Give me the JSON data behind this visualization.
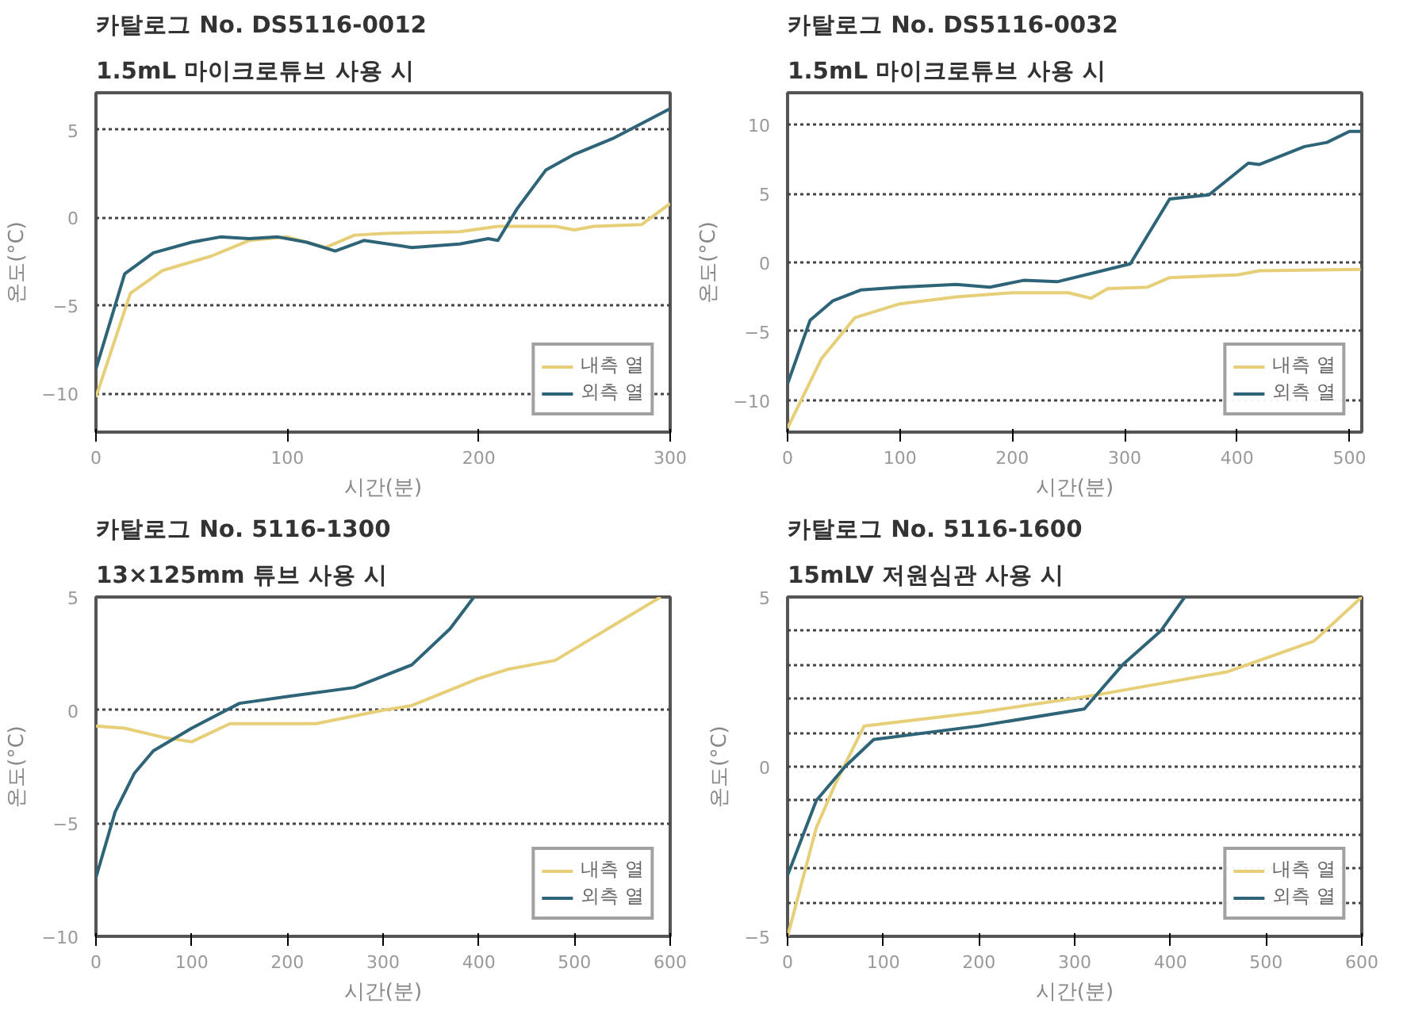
{
  "chart_data": [
    {
      "type": "line",
      "title": "카탈로그 No. DS5116-0012",
      "subtitle": "1.5mL 마이크로튜브 사용 시",
      "xlabel": "시간(분)",
      "ylabel": "온도(°C)",
      "xlim": [
        0,
        300
      ],
      "xticks": [
        0,
        100,
        200,
        300
      ],
      "ylim": [
        -12.2,
        7.1
      ],
      "yticks": [
        -10,
        -5,
        0,
        5
      ],
      "grid": "y",
      "legend": "bottom right",
      "series": [
        {
          "name": "내측 열",
          "color": "#e6cf78",
          "x": [
            0,
            18,
            35,
            60,
            80,
            100,
            120,
            135,
            150,
            190,
            210,
            240,
            250,
            260,
            285,
            300
          ],
          "values": [
            -10.2,
            -4.3,
            -3,
            -2.2,
            -1.3,
            -1.1,
            -1.7,
            -1,
            -0.9,
            -0.8,
            -0.5,
            -0.5,
            -0.7,
            -0.5,
            -0.4,
            0.8
          ]
        },
        {
          "name": "외측 열",
          "color": "#2e6478",
          "x": [
            0,
            15,
            30,
            50,
            65,
            80,
            95,
            110,
            125,
            140,
            165,
            190,
            205,
            210,
            220,
            235,
            250,
            270,
            300
          ],
          "values": [
            -8.6,
            -3.2,
            -2,
            -1.4,
            -1.1,
            -1.2,
            -1.1,
            -1.4,
            -1.9,
            -1.3,
            -1.7,
            -1.5,
            -1.2,
            -1.3,
            0.5,
            2.7,
            3.6,
            4.5,
            6.2
          ]
        }
      ]
    },
    {
      "type": "line",
      "title": "카탈로그 No. DS5116-0032",
      "subtitle": "1.5mL 마이크로튜브 사용 시",
      "xlabel": "시간(분)",
      "ylabel": "온도(°C)",
      "xlim": [
        0,
        511
      ],
      "xticks": [
        0,
        100,
        200,
        300,
        400,
        500
      ],
      "ylim": [
        -12.3,
        12.3
      ],
      "yticks": [
        -10,
        -5,
        0,
        5,
        10
      ],
      "grid": "y",
      "legend": "bottom right",
      "series": [
        {
          "name": "내측 열",
          "color": "#e6cf78",
          "x": [
            0,
            15,
            30,
            60,
            100,
            150,
            200,
            250,
            270,
            285,
            320,
            340,
            400,
            420,
            510
          ],
          "values": [
            -12,
            -9.5,
            -7,
            -4,
            -3,
            -2.5,
            -2.2,
            -2.2,
            -2.6,
            -1.9,
            -1.8,
            -1.1,
            -0.9,
            -0.6,
            -0.5
          ]
        },
        {
          "name": "외측 열",
          "color": "#2e6478",
          "x": [
            0,
            20,
            40,
            65,
            100,
            150,
            180,
            210,
            240,
            280,
            300,
            305,
            340,
            375,
            410,
            420,
            460,
            480,
            500,
            510
          ],
          "values": [
            -8.8,
            -4.2,
            -2.8,
            -2,
            -1.8,
            -1.6,
            -1.8,
            -1.3,
            -1.4,
            -0.6,
            -0.2,
            -0.1,
            4.6,
            4.9,
            7.2,
            7.1,
            8.4,
            8.7,
            9.5,
            9.5
          ]
        }
      ]
    },
    {
      "type": "line",
      "title": "카탈로그 No. 5116-1300",
      "subtitle": "13×125mm 튜브 사용 시",
      "xlabel": "시간(분)",
      "ylabel": "온도(°C)",
      "xlim": [
        0,
        600
      ],
      "xticks": [
        0,
        100,
        200,
        300,
        400,
        500,
        600
      ],
      "ylim": [
        -10,
        5
      ],
      "yticks": [
        -10,
        -5,
        0,
        5
      ],
      "grid": "y",
      "legend": "bottom right",
      "series": [
        {
          "name": "내측 열",
          "color": "#e6cf78",
          "x": [
            0,
            30,
            70,
            100,
            140,
            230,
            300,
            330,
            400,
            430,
            480,
            590
          ],
          "values": [
            -0.7,
            -0.8,
            -1.2,
            -1.4,
            -0.6,
            -0.6,
            0,
            0.2,
            1.4,
            1.8,
            2.2,
            5
          ]
        },
        {
          "name": "외측 열",
          "color": "#2e6478",
          "x": [
            0,
            20,
            40,
            60,
            100,
            150,
            200,
            270,
            330,
            370,
            395
          ],
          "values": [
            -7.4,
            -4.5,
            -2.8,
            -1.8,
            -0.8,
            0.3,
            0.6,
            1,
            2,
            3.6,
            5
          ]
        }
      ]
    },
    {
      "type": "line",
      "title": "카탈로그 No. 5116-1600",
      "subtitle": "15mLV 저원심관 사용 시",
      "xlabel": "시간(분)",
      "ylabel": "온도(°C)",
      "xlim": [
        0,
        600
      ],
      "xticks": [
        0,
        100,
        200,
        300,
        400,
        500,
        600
      ],
      "ylim": [
        -5,
        5
      ],
      "yticks": [
        -5,
        {
          "value": -4,
          "label": null
        },
        {
          "value": -3,
          "label": null
        },
        {
          "value": -2,
          "label": null
        },
        {
          "value": -1,
          "label": null
        },
        0,
        {
          "value": 1,
          "label": null
        },
        {
          "value": 2,
          "label": null
        },
        {
          "value": 3,
          "label": null
        },
        {
          "value": 4,
          "label": null
        },
        5
      ],
      "grid": "y",
      "legend": "bottom right",
      "series": [
        {
          "name": "내측 열",
          "color": "#e6cf78",
          "x": [
            0,
            30,
            50,
            80,
            200,
            320,
            460,
            550,
            600
          ],
          "values": [
            -5,
            -1.8,
            -0.5,
            1.2,
            1.6,
            2.1,
            2.8,
            3.7,
            5
          ]
        },
        {
          "name": "외측 열",
          "color": "#2e6478",
          "x": [
            0,
            30,
            60,
            90,
            200,
            310,
            350,
            390,
            415
          ],
          "values": [
            -3.2,
            -1,
            0,
            0.8,
            1.2,
            1.7,
            3,
            4,
            5
          ]
        }
      ]
    }
  ]
}
